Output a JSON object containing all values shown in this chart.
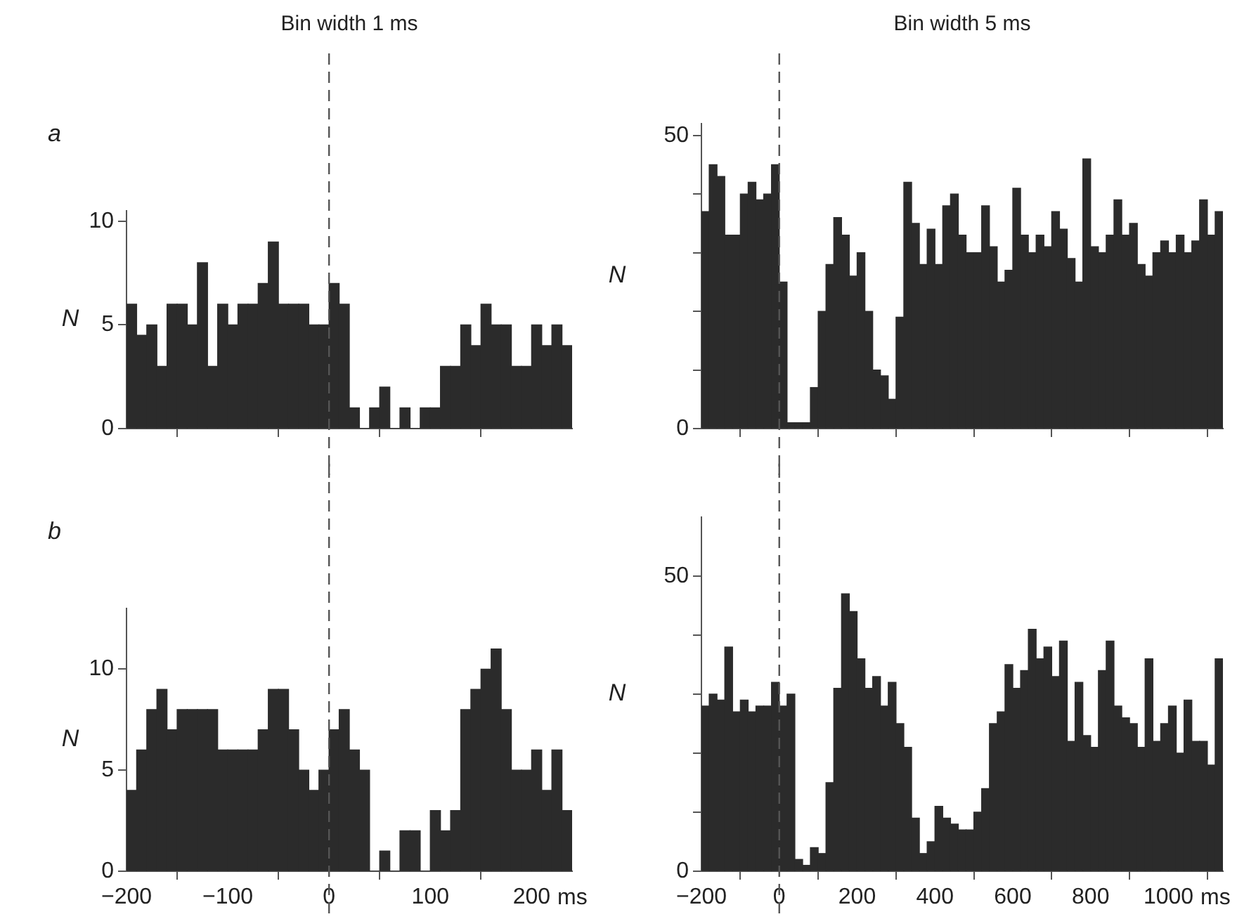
{
  "chart_data": [
    {
      "type": "histogram",
      "title": "Bin width 1 ms",
      "ylabel": "N",
      "annotations": [
        "a"
      ],
      "color": "#2b2b2b",
      "bins": [
        -200,
        -190,
        -180,
        -170,
        -160,
        -150,
        -140,
        -130,
        -120,
        -110,
        -100,
        -90,
        -80,
        -70,
        -60,
        -50,
        -40,
        -30,
        -20,
        -10,
        0,
        10,
        20,
        30,
        40,
        50,
        60,
        70,
        80,
        90,
        100,
        110,
        120,
        130,
        140,
        150,
        160,
        170,
        180,
        190,
        200,
        210,
        220,
        230,
        240
      ],
      "values": [
        6,
        4.5,
        5,
        3,
        6,
        6,
        5,
        8,
        3,
        6,
        5,
        6,
        6,
        7,
        9,
        6,
        6,
        6,
        5,
        5,
        7,
        6,
        1,
        0,
        1,
        2,
        0,
        1,
        0,
        1,
        1,
        3,
        3,
        5,
        4,
        6,
        5,
        5,
        3,
        3,
        5,
        4,
        5,
        4
      ],
      "xlim": [
        -200,
        240
      ],
      "xticks": [
        -200,
        -100,
        0,
        100,
        200
      ],
      "ylim": [
        0,
        10.5
      ],
      "yticks": [
        0,
        5,
        10
      ],
      "tick_labels": "y",
      "grid": false,
      "ref_lines": [
        {
          "axis": "x",
          "value": 0,
          "line_style": "dashed"
        }
      ]
    },
    {
      "type": "histogram",
      "title": "Bin width 5 ms",
      "ylabel": "N",
      "color": "#2b2b2b",
      "bins": [
        -200,
        -180,
        -160,
        -140,
        -120,
        -100,
        -80,
        -60,
        -40,
        -20,
        0,
        20,
        40,
        60,
        80,
        100,
        120,
        140,
        160,
        180,
        200,
        220,
        240,
        260,
        280,
        300,
        320,
        340,
        360,
        380,
        400,
        420,
        440,
        460,
        480,
        500,
        520,
        540,
        560,
        580,
        600,
        620,
        640,
        660,
        680,
        700,
        720,
        740,
        760,
        780,
        800,
        820,
        840,
        860,
        880,
        900,
        920,
        940,
        960,
        980,
        1000,
        1020,
        1040,
        1060,
        1080,
        1100,
        1120,
        1140
      ],
      "values": [
        37,
        45,
        43,
        33,
        33,
        40,
        42,
        39,
        40,
        45,
        25,
        1,
        1,
        1,
        7,
        20,
        28,
        36,
        33,
        26,
        30,
        20,
        10,
        9,
        5,
        19,
        42,
        35,
        28,
        34,
        28,
        38,
        40,
        33,
        30,
        30,
        38,
        31,
        25,
        27,
        41,
        33,
        30,
        33,
        31,
        37,
        34,
        29,
        25,
        46,
        31,
        30,
        33,
        39,
        33,
        35,
        28,
        26,
        30,
        32,
        30,
        33,
        30,
        32,
        39,
        33,
        37
      ],
      "xlim": [
        -200,
        1140
      ],
      "xticks": [
        -200,
        0,
        200,
        400,
        600,
        800,
        1000
      ],
      "ylim": [
        0,
        52
      ],
      "yticks": [
        0,
        {
          "value": 10,
          "label": null
        },
        {
          "value": 20,
          "label": null
        },
        {
          "value": 30,
          "label": null
        },
        {
          "value": 40,
          "label": null
        },
        50
      ],
      "tick_labels": "y",
      "grid": false,
      "ref_lines": [
        {
          "axis": "x",
          "value": 0,
          "line_style": "dashed"
        }
      ]
    },
    {
      "type": "histogram",
      "ylabel": "N",
      "xlabel": "ms",
      "annotations": [
        "b"
      ],
      "color": "#2b2b2b",
      "bins": [
        -200,
        -190,
        -180,
        -170,
        -160,
        -150,
        -140,
        -130,
        -120,
        -110,
        -100,
        -90,
        -80,
        -70,
        -60,
        -50,
        -40,
        -30,
        -20,
        -10,
        0,
        10,
        20,
        30,
        40,
        50,
        60,
        70,
        80,
        90,
        100,
        110,
        120,
        130,
        140,
        150,
        160,
        170,
        180,
        190,
        200,
        210,
        220,
        230,
        240
      ],
      "values": [
        4,
        6,
        8,
        9,
        7,
        8,
        8,
        8,
        8,
        6,
        6,
        6,
        6,
        7,
        9,
        9,
        7,
        5,
        4,
        5,
        7,
        8,
        6,
        5,
        0,
        1,
        0,
        2,
        2,
        0,
        3,
        2,
        3,
        8,
        9,
        10,
        11,
        8,
        5,
        5,
        6,
        4,
        6,
        3
      ],
      "xlim": [
        -200,
        240
      ],
      "xticks": [
        -200,
        -100,
        0,
        100,
        200
      ],
      "ylim": [
        0,
        13
      ],
      "yticks": [
        0,
        5,
        10
      ],
      "grid": false,
      "ref_lines": [
        {
          "axis": "x",
          "value": 0,
          "line_style": "dashed"
        }
      ]
    },
    {
      "type": "histogram",
      "ylabel": "N",
      "xlabel": "ms",
      "color": "#2b2b2b",
      "bins": [
        -200,
        -180,
        -160,
        -140,
        -120,
        -100,
        -80,
        -60,
        -40,
        -20,
        0,
        20,
        40,
        60,
        80,
        100,
        120,
        140,
        160,
        180,
        200,
        220,
        240,
        260,
        280,
        300,
        320,
        340,
        360,
        380,
        400,
        420,
        440,
        460,
        480,
        500,
        520,
        540,
        560,
        580,
        600,
        620,
        640,
        660,
        680,
        700,
        720,
        740,
        760,
        780,
        800,
        820,
        840,
        860,
        880,
        900,
        920,
        940,
        960,
        980,
        1000,
        1020,
        1040,
        1060,
        1080,
        1100,
        1120,
        1140
      ],
      "values": [
        28,
        30,
        29,
        38,
        27,
        29,
        27,
        28,
        28,
        32,
        28,
        30,
        2,
        1,
        4,
        3,
        15,
        31,
        47,
        44,
        36,
        31,
        33,
        28,
        32,
        25,
        21,
        9,
        3,
        5,
        11,
        9,
        8,
        7,
        7,
        10,
        14,
        25,
        27,
        35,
        31,
        34,
        41,
        36,
        38,
        33,
        39,
        22,
        32,
        23,
        21,
        34,
        39,
        28,
        26,
        25,
        21,
        36,
        22,
        25,
        28,
        20,
        29,
        22,
        22,
        18,
        36
      ],
      "xlim": [
        -200,
        1140
      ],
      "xticks": [
        -200,
        0,
        200,
        400,
        600,
        800,
        1000
      ],
      "ylim": [
        0,
        60
      ],
      "yticks": [
        0,
        {
          "value": 10,
          "label": null
        },
        {
          "value": 20,
          "label": null
        },
        {
          "value": 30,
          "label": null
        },
        {
          "value": 40,
          "label": null
        },
        50
      ],
      "grid": false,
      "ref_lines": [
        {
          "axis": "x",
          "value": 0,
          "line_style": "dashed"
        }
      ]
    }
  ]
}
